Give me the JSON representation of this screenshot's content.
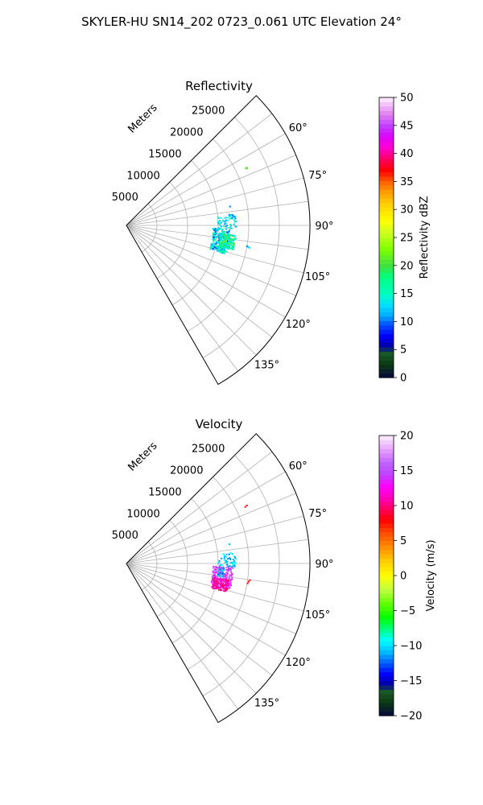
{
  "suptitle": "SKYLER-HU  SN14_202  0723_0.061 UTC Elevation 24°",
  "chart_data": [
    {
      "type": "scatter",
      "subtype": "polar-sector",
      "title": "Reflectivity",
      "radial_axis_label": "Meters",
      "radial_ticks": [
        5000,
        10000,
        15000,
        20000,
        25000
      ],
      "radial_tick_labels": [
        "5000",
        "10000",
        "15000",
        "20000",
        "25000"
      ],
      "rlim": [
        0,
        30000
      ],
      "azimuth_range_deg": [
        45,
        150
      ],
      "angle_ticks": [
        60,
        75,
        90,
        105,
        120,
        135
      ],
      "angle_tick_labels": [
        "60°",
        "75°",
        "90°",
        "105°",
        "120°",
        "135°"
      ],
      "grid": true,
      "colorbar": {
        "label": "Reflectivity dBZ",
        "vmin": 0,
        "vmax": 50,
        "ticks": [
          0,
          5,
          10,
          15,
          20,
          25,
          30,
          35,
          40,
          45,
          50
        ],
        "tick_labels": [
          "0",
          "5",
          "10",
          "15",
          "20",
          "25",
          "30",
          "35",
          "40",
          "45",
          "50"
        ]
      },
      "regions": [
        {
          "az": [
            92,
            106
          ],
          "r": [
            14200,
            17000
          ],
          "v": [
            8,
            18
          ],
          "n": 240
        },
        {
          "az": [
            95,
            103
          ],
          "r": [
            15500,
            18000
          ],
          "v": [
            12,
            22
          ],
          "n": 160
        },
        {
          "az": [
            84,
            92
          ],
          "r": [
            15000,
            18000
          ],
          "v": [
            10,
            16
          ],
          "n": 60
        },
        {
          "az": [
            97,
            101
          ],
          "r": [
            20000,
            20500
          ],
          "v": [
            10,
            14
          ],
          "n": 3
        },
        {
          "az": [
            79,
            80
          ],
          "r": [
            17000,
            17300
          ],
          "v": [
            9,
            12
          ],
          "n": 2
        },
        {
          "az": [
            64,
            65
          ],
          "r": [
            21500,
            21900
          ],
          "v": [
            18,
            22
          ],
          "n": 3
        }
      ]
    },
    {
      "type": "scatter",
      "subtype": "polar-sector",
      "title": "Velocity",
      "radial_axis_label": "Meters",
      "radial_ticks": [
        5000,
        10000,
        15000,
        20000,
        25000
      ],
      "radial_tick_labels": [
        "5000",
        "10000",
        "15000",
        "20000",
        "25000"
      ],
      "rlim": [
        0,
        30000
      ],
      "azimuth_range_deg": [
        45,
        150
      ],
      "angle_ticks": [
        60,
        75,
        90,
        105,
        120,
        135
      ],
      "angle_tick_labels": [
        "60°",
        "75°",
        "90°",
        "105°",
        "120°",
        "135°"
      ],
      "grid": true,
      "colorbar": {
        "label": "Velocity (m/s)",
        "vmin": -20,
        "vmax": 20,
        "ticks": [
          -20,
          -15,
          -10,
          -5,
          0,
          5,
          10,
          15,
          20
        ],
        "tick_labels": [
          "−20",
          "−15",
          "−10",
          "−5",
          "0",
          "5",
          "10",
          "15",
          "20"
        ]
      },
      "regions": [
        {
          "az": [
            92,
            104
          ],
          "r": [
            14200,
            17500
          ],
          "v": [
            12,
            18
          ],
          "n": 230
        },
        {
          "az": [
            99,
            106
          ],
          "r": [
            14500,
            17000
          ],
          "v": [
            9,
            12
          ],
          "n": 110
        },
        {
          "az": [
            92,
            98
          ],
          "r": [
            15000,
            16000
          ],
          "v": [
            -13,
            -9
          ],
          "n": 30
        },
        {
          "az": [
            84,
            92
          ],
          "r": [
            15000,
            18000
          ],
          "v": [
            -12,
            -9
          ],
          "n": 50
        },
        {
          "az": [
            97,
            101
          ],
          "r": [
            20000,
            20500
          ],
          "v": [
            7,
            9
          ],
          "n": 3
        },
        {
          "az": [
            79,
            80
          ],
          "r": [
            17000,
            17300
          ],
          "v": [
            -11,
            -9
          ],
          "n": 2
        },
        {
          "az": [
            64,
            65
          ],
          "r": [
            21500,
            21900
          ],
          "v": [
            7,
            9
          ],
          "n": 2
        }
      ]
    }
  ]
}
